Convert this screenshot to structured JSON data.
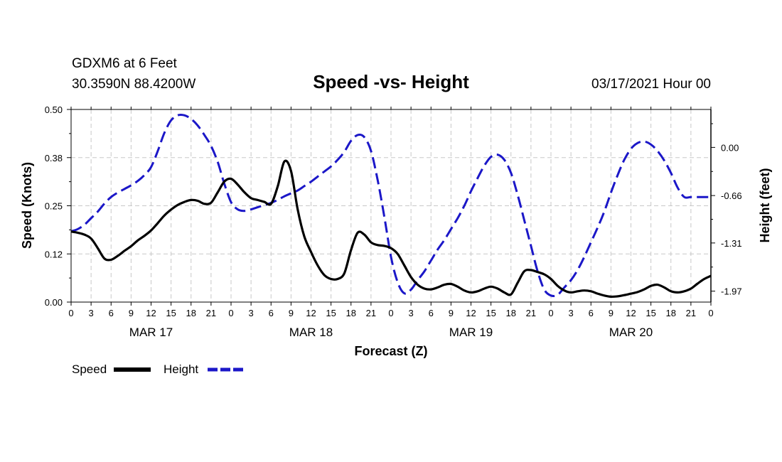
{
  "header": {
    "station": "GDXM6 at 6 Feet",
    "location": "30.3590N 88.4200W",
    "title": "Speed -vs- Height",
    "datetime": "03/17/2021 Hour 00"
  },
  "chart_data": {
    "type": "line",
    "title": "Speed -vs- Height",
    "xlabel": "Forecast (Z)",
    "ylabel_left": "Speed (Knots)",
    "ylabel_right": "Height (feet)",
    "x_range_hours": [
      0,
      96
    ],
    "y_left_range": [
      0,
      0.5
    ],
    "y_right_range": [
      -2.12,
      0.52
    ],
    "y_left_ticks": [
      "0.00",
      "0.12",
      "0.25",
      "0.38",
      "0.50"
    ],
    "y_left_tick_values": [
      0,
      0.125,
      0.25,
      0.375,
      0.5
    ],
    "y_right_ticks": [
      "0.00",
      "-0.66",
      "-1.31",
      "-1.97"
    ],
    "y_right_tick_values": [
      0,
      -0.66,
      -1.31,
      -1.97
    ],
    "x_tick_labels": [
      "0",
      "3",
      "6",
      "9",
      "12",
      "15",
      "18",
      "21",
      "0",
      "3",
      "6",
      "9",
      "12",
      "15",
      "18",
      "21",
      "0",
      "3",
      "6",
      "9",
      "12",
      "15",
      "18",
      "21",
      "0",
      "3",
      "6",
      "9",
      "12",
      "15",
      "18",
      "21",
      "0"
    ],
    "day_labels": [
      {
        "label": "MAR 17",
        "hour": 12
      },
      {
        "label": "MAR 18",
        "hour": 36
      },
      {
        "label": "MAR 19",
        "hour": 60
      },
      {
        "label": "MAR 20",
        "hour": 84
      }
    ],
    "grid": true,
    "legend_position": "bottom-left",
    "series": [
      {
        "name": "Speed",
        "axis": "left",
        "color": "#000000",
        "style": "solid",
        "x": [
          0,
          1,
          2,
          3,
          4,
          5,
          6,
          7,
          8,
          9,
          10,
          11,
          12,
          13,
          14,
          15,
          16,
          17,
          18,
          19,
          20,
          21,
          22,
          23,
          24,
          25,
          26,
          27,
          28,
          29,
          30,
          31,
          32,
          33,
          34,
          35,
          36,
          37,
          38,
          39,
          40,
          41,
          42,
          43,
          44,
          45,
          46,
          47,
          48,
          49,
          50,
          51,
          52,
          53,
          54,
          55,
          56,
          57,
          58,
          59,
          60,
          61,
          62,
          63,
          64,
          65,
          66,
          67,
          68,
          69,
          70,
          71,
          72,
          73,
          74,
          75,
          76,
          77,
          78,
          79,
          80,
          81,
          82,
          83,
          84,
          85,
          86,
          87,
          88,
          89,
          90,
          91,
          92,
          93,
          94,
          95,
          96
        ],
        "values": [
          0.183,
          0.18,
          0.175,
          0.165,
          0.14,
          0.113,
          0.11,
          0.12,
          0.133,
          0.145,
          0.16,
          0.172,
          0.186,
          0.205,
          0.225,
          0.24,
          0.252,
          0.26,
          0.265,
          0.263,
          0.255,
          0.258,
          0.285,
          0.313,
          0.32,
          0.305,
          0.285,
          0.27,
          0.265,
          0.26,
          0.255,
          0.3,
          0.365,
          0.34,
          0.24,
          0.17,
          0.13,
          0.095,
          0.07,
          0.06,
          0.06,
          0.075,
          0.135,
          0.18,
          0.175,
          0.155,
          0.148,
          0.146,
          0.14,
          0.125,
          0.095,
          0.065,
          0.045,
          0.035,
          0.033,
          0.038,
          0.045,
          0.047,
          0.04,
          0.03,
          0.025,
          0.028,
          0.035,
          0.04,
          0.035,
          0.025,
          0.02,
          0.05,
          0.08,
          0.083,
          0.078,
          0.072,
          0.06,
          0.042,
          0.03,
          0.025,
          0.028,
          0.03,
          0.028,
          0.022,
          0.017,
          0.014,
          0.015,
          0.018,
          0.022,
          0.026,
          0.033,
          0.042,
          0.045,
          0.038,
          0.028,
          0.025,
          0.028,
          0.035,
          0.048,
          0.06,
          0.068
        ]
      },
      {
        "name": "Height",
        "axis": "right",
        "color": "#1b17c8",
        "style": "dashed",
        "x": [
          0,
          1,
          2,
          3,
          4,
          5,
          6,
          7,
          8,
          9,
          10,
          11,
          12,
          13,
          14,
          15,
          16,
          17,
          18,
          19,
          20,
          21,
          22,
          23,
          24,
          25,
          26,
          27,
          28,
          29,
          30,
          31,
          32,
          33,
          34,
          35,
          36,
          37,
          38,
          39,
          40,
          41,
          42,
          43,
          44,
          45,
          46,
          47,
          48,
          49,
          50,
          51,
          52,
          53,
          54,
          55,
          56,
          57,
          58,
          59,
          60,
          61,
          62,
          63,
          64,
          65,
          66,
          67,
          68,
          69,
          70,
          71,
          72,
          73,
          74,
          75,
          76,
          77,
          78,
          79,
          80,
          81,
          82,
          83,
          84,
          85,
          86,
          87,
          88,
          89,
          90,
          91,
          92,
          93,
          94,
          95,
          96
        ],
        "values": [
          -1.15,
          -1.12,
          -1.06,
          -0.97,
          -0.88,
          -0.77,
          -0.68,
          -0.62,
          -0.57,
          -0.52,
          -0.46,
          -0.38,
          -0.27,
          -0.05,
          0.2,
          0.37,
          0.44,
          0.44,
          0.39,
          0.3,
          0.17,
          0.02,
          -0.2,
          -0.5,
          -0.75,
          -0.85,
          -0.87,
          -0.85,
          -0.82,
          -0.79,
          -0.76,
          -0.72,
          -0.67,
          -0.63,
          -0.59,
          -0.53,
          -0.47,
          -0.4,
          -0.33,
          -0.26,
          -0.17,
          -0.06,
          0.09,
          0.17,
          0.14,
          -0.05,
          -0.45,
          -0.95,
          -1.5,
          -1.85,
          -2.0,
          -1.95,
          -1.82,
          -1.7,
          -1.55,
          -1.4,
          -1.27,
          -1.12,
          -0.97,
          -0.8,
          -0.6,
          -0.42,
          -0.25,
          -0.13,
          -0.1,
          -0.17,
          -0.35,
          -0.65,
          -1.0,
          -1.35,
          -1.7,
          -1.95,
          -2.03,
          -2.02,
          -1.92,
          -1.82,
          -1.68,
          -1.5,
          -1.3,
          -1.1,
          -0.88,
          -0.62,
          -0.38,
          -0.17,
          -0.02,
          0.06,
          0.08,
          0.04,
          -0.05,
          -0.18,
          -0.35,
          -0.55,
          -0.68,
          -0.68,
          -0.68,
          -0.68,
          -0.68
        ]
      }
    ]
  },
  "legend": {
    "items": [
      {
        "label": "Speed",
        "color": "#000000"
      },
      {
        "label": "Height",
        "color": "#1b17c8"
      }
    ]
  }
}
